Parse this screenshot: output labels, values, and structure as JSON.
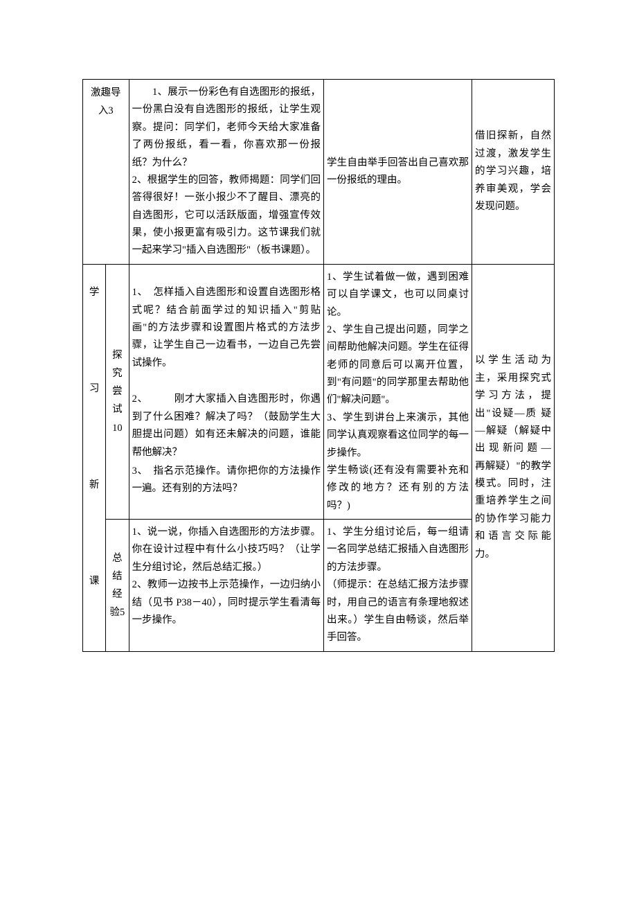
{
  "rows": {
    "intro": {
      "phase": "激趣导入3",
      "teacher": "　　1、展示一份彩色有自选图形的报纸，一份黑白没有自选图形的报纸，让学生观察。提问：同学们，老师今天给大家准备了两份报纸，看一看，你喜欢那一份报纸？为什么？\n2、根据学生的回答，教师揭题：同学们回答得很好！一张小报少不了醒目、漂亮的自选图形，它可以活跃版面，增强宣传效果，使小报更富有吸引力。这节课我们就一起来学习\"插入自选图形\"（板书课题）。",
      "student": "学生自由举手回答出自己喜欢那一份报纸的理由。",
      "intent": "借旧探新，自然过渡，激发学生的学习兴趣，培养审美观，学会发现问题。"
    },
    "learn": {
      "phase": "学\n\n习\n\n新\n\n课",
      "explore": {
        "step": "探究尝试10",
        "teacher_p1": "1、　怎样插入自选图形和设置自选图形格式呢？结合前面学过的知识插入\"剪贴画\"的方法步骤和设置图片格式的方法步骤，让学生自己一边看书，一边自己先尝试操作。",
        "teacher_p2": "2、　　　刚才大家插入自选图形时，你遇到了什么困难？解决了吗？（鼓励学生大胆提出问题）如有还未解决的问题，谁能帮他解决？",
        "teacher_p3": "3、　指名示范操作。请你把你的方法操作一遍。还有别的方法吗？",
        "student": "1、学生试着做一做，遇到困难可以自学课文，也可以同桌讨论。\n2、学生自己提出问题，同学之间帮助他解决问题。学生在征得老师的同意后可以离开位置，到\"有问题\"的同学那里去帮助他们\"解决问题\"。\n3、学生到讲台上来演示，其他同学认真观察看这位同学的每一步操作。\n学生畅谈(还有没有需要补充和修改的地方？还有别的方法吗？)"
      },
      "summary": {
        "step": "总结经验5",
        "teacher": "1、说一说，你插入自选图形的方法步骤。你在设计过程中有什么小技巧吗？（让学生分组讨论，然后总结汇报。）\n2、教师一边按书上示范操作，一边归纳小结（见书 P38－40），同时提示学生看清每一步操作。",
        "student": "1、学生分组讨论后，每一组请一名同学总结汇报插入自选图形的方法步骤。\n（师提示：在总结汇报方法步骤时，用自己的语言有条理地叙述出来。）学生自由畅谈，然后举手回答。"
      },
      "intent": "以学生活动为主，采用探究式学习方法，提出\"设疑—质 疑 —解疑（解疑中 出 现 新问 题 —再解疑）\"的教学模式。同时，注重培养学生之间的协作学习能力和语言交际能力。"
    }
  }
}
